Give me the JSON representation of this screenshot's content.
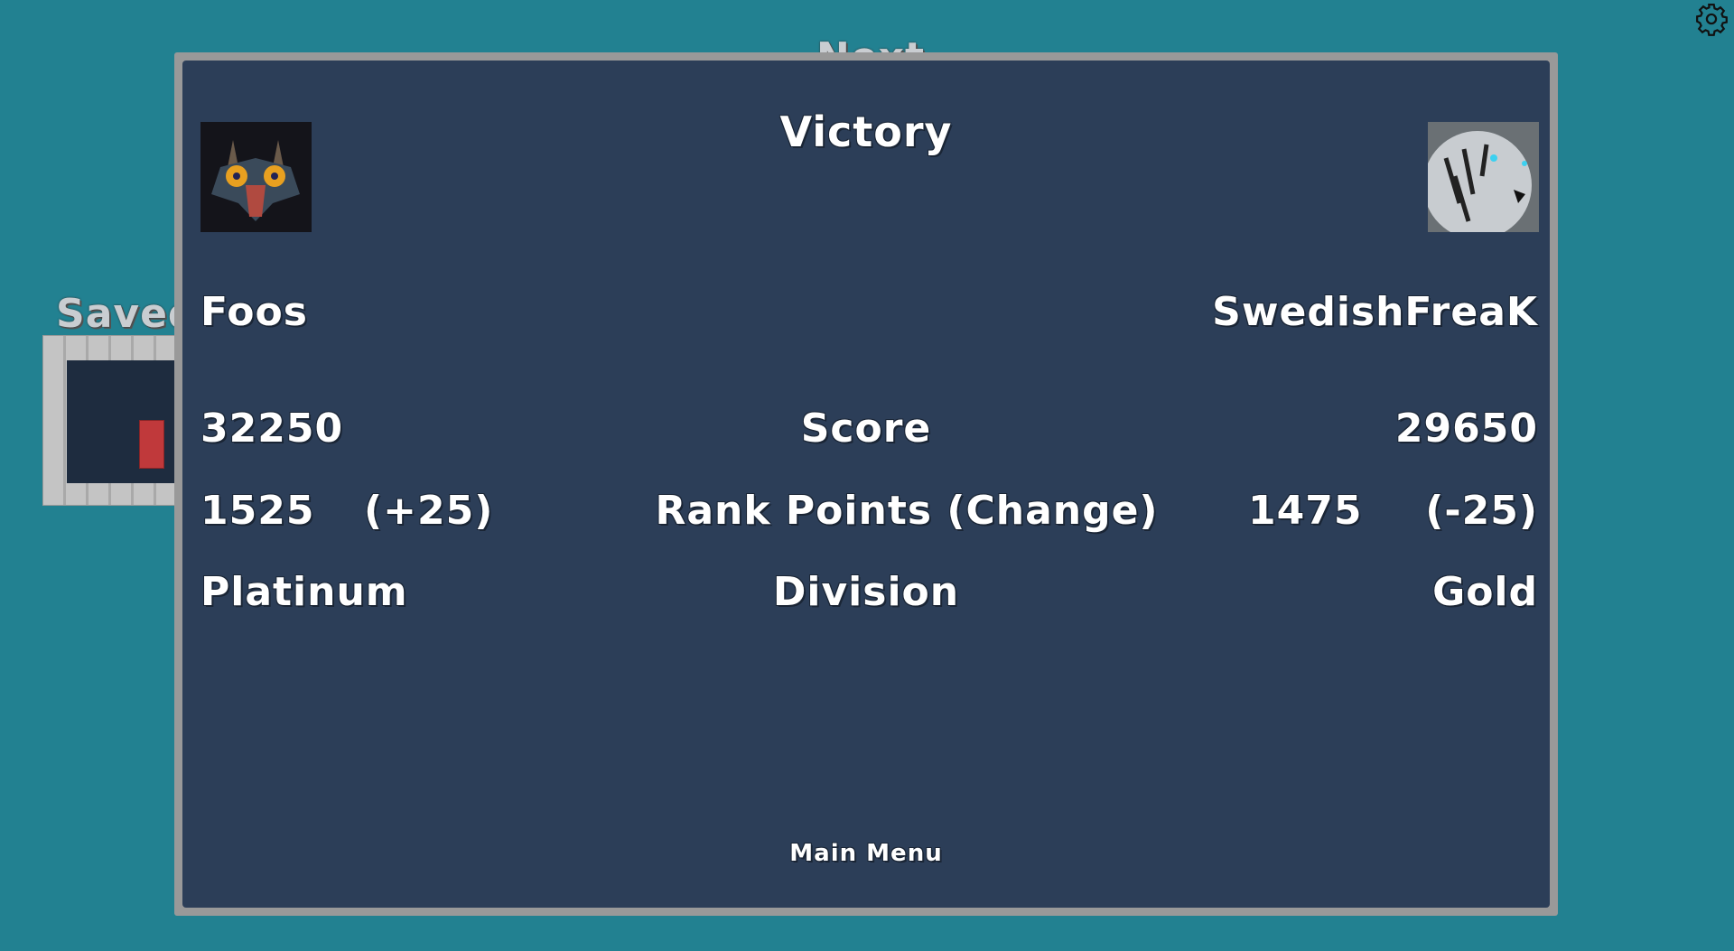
{
  "background": {
    "saved_label": "Saved",
    "next_label": "Next"
  },
  "settings": {
    "icon": "gear-icon"
  },
  "dialog": {
    "title": "Victory",
    "player1": {
      "name": "Foos",
      "score": "32250",
      "rank_points": "1525",
      "rank_change": "(+25)",
      "division": "Platinum",
      "avatar": "majoras-mask-avatar"
    },
    "player2": {
      "name": "SwedishFreaK",
      "score": "29650",
      "rank_points": "1475",
      "rank_change": "(-25)",
      "division": "Gold",
      "avatar": "white-tiger-avatar"
    },
    "labels": {
      "score": "Score",
      "rank_points": "Rank Points (Change)",
      "division": "Division"
    },
    "main_menu": "Main Menu"
  },
  "colors": {
    "background": "#228191",
    "panel": "#2c3e58",
    "border": "#999999"
  }
}
